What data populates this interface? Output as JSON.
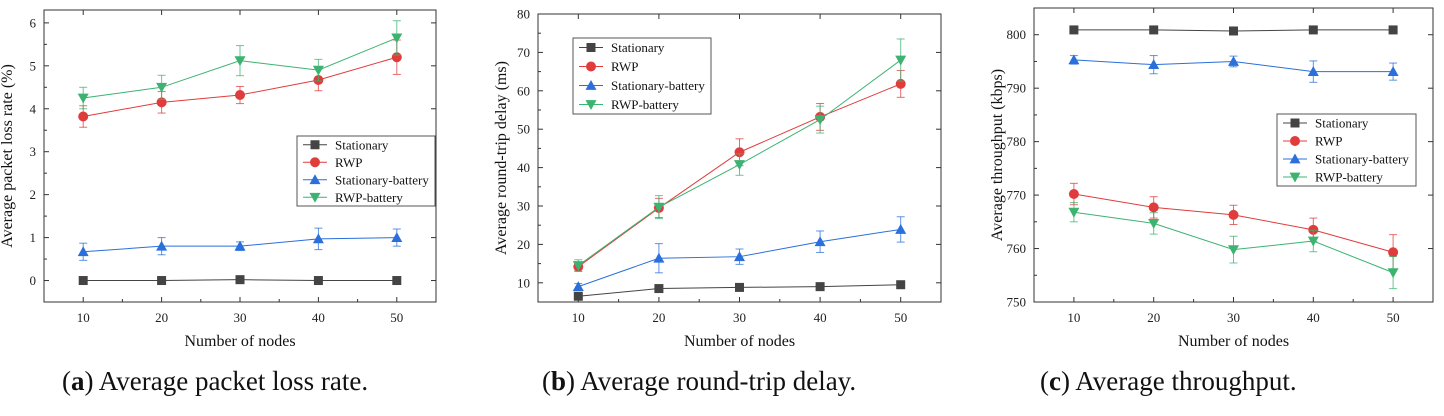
{
  "chart_data": [
    {
      "type": "line",
      "caption_letter": "a",
      "caption_text": "Average packet loss rate.",
      "xlabel": "Number of nodes",
      "ylabel": "Average packet loss rate (%)",
      "x": [
        10,
        20,
        30,
        40,
        50
      ],
      "xlim": [
        5,
        55
      ],
      "ylim": [
        -0.5,
        6.3
      ],
      "yticks": [
        0,
        1,
        2,
        3,
        4,
        5,
        6
      ],
      "legend_position": "center-right",
      "series": [
        {
          "name": "Stationary",
          "color": "#444444",
          "marker": "square",
          "values": [
            0.0,
            0.0,
            0.02,
            0.0,
            0.0
          ],
          "errors": [
            0.0,
            0.0,
            0.0,
            0.0,
            0.0
          ]
        },
        {
          "name": "RWP",
          "color": "#e03c3c",
          "marker": "circle",
          "values": [
            3.82,
            4.15,
            4.32,
            4.67,
            5.2
          ],
          "errors": [
            0.25,
            0.25,
            0.2,
            0.25,
            0.4
          ]
        },
        {
          "name": "Stationary-battery",
          "color": "#2a6fdb",
          "marker": "triangle-up",
          "values": [
            0.67,
            0.8,
            0.8,
            0.97,
            1.0
          ],
          "errors": [
            0.2,
            0.2,
            0.1,
            0.25,
            0.2
          ]
        },
        {
          "name": "RWP-battery",
          "color": "#3cb371",
          "marker": "triangle-down",
          "values": [
            4.25,
            4.5,
            5.12,
            4.9,
            5.65
          ],
          "errors": [
            0.25,
            0.28,
            0.35,
            0.25,
            0.4
          ]
        }
      ]
    },
    {
      "type": "line",
      "caption_letter": "b",
      "caption_text": "Average round-trip delay.",
      "xlabel": "Number of nodes",
      "ylabel": "Average round-trip delay (ms)",
      "x": [
        10,
        20,
        30,
        40,
        50
      ],
      "xlim": [
        5,
        55
      ],
      "ylim": [
        5,
        80
      ],
      "yticks": [
        10,
        20,
        30,
        40,
        50,
        60,
        70,
        80
      ],
      "legend_position": "top-left",
      "series": [
        {
          "name": "Stationary",
          "color": "#444444",
          "marker": "square",
          "values": [
            6.5,
            8.5,
            8.8,
            9.0,
            9.5
          ],
          "errors": [
            0.0,
            0.0,
            0.0,
            0.0,
            0.0
          ]
        },
        {
          "name": "RWP",
          "color": "#e03c3c",
          "marker": "circle",
          "values": [
            14.2,
            29.5,
            44.0,
            53.2,
            61.8
          ],
          "errors": [
            1.2,
            2.5,
            3.5,
            3.5,
            3.5
          ]
        },
        {
          "name": "Stationary-battery",
          "color": "#2a6fdb",
          "marker": "triangle-up",
          "values": [
            9.0,
            16.4,
            16.8,
            20.7,
            23.9
          ],
          "errors": [
            0.8,
            3.8,
            2.0,
            2.8,
            3.3
          ]
        },
        {
          "name": "RWP-battery",
          "color": "#3cb371",
          "marker": "triangle-down",
          "values": [
            14.5,
            29.7,
            40.8,
            52.5,
            68.0
          ],
          "errors": [
            1.5,
            3.0,
            2.8,
            3.5,
            5.5
          ]
        }
      ]
    },
    {
      "type": "line",
      "caption_letter": "c",
      "caption_text": "Average throughput.",
      "xlabel": "Number of nodes",
      "ylabel": "Average throughput (kbps)",
      "x": [
        10,
        20,
        30,
        40,
        50
      ],
      "xlim": [
        5,
        55
      ],
      "ylim": [
        750,
        805
      ],
      "yticks": [
        750,
        760,
        770,
        780,
        790,
        800
      ],
      "legend_position": "center-right",
      "series": [
        {
          "name": "Stationary",
          "color": "#444444",
          "marker": "square",
          "values": [
            800.9,
            800.9,
            800.7,
            800.9,
            800.9
          ],
          "errors": [
            0.0,
            0.0,
            0.0,
            0.0,
            0.0
          ]
        },
        {
          "name": "RWP",
          "color": "#e03c3c",
          "marker": "circle",
          "values": [
            770.2,
            767.7,
            766.3,
            763.5,
            759.3
          ],
          "errors": [
            2.0,
            2.0,
            1.8,
            2.2,
            3.3
          ]
        },
        {
          "name": "Stationary-battery",
          "color": "#2a6fdb",
          "marker": "triangle-up",
          "values": [
            795.3,
            794.4,
            795.0,
            793.1,
            793.1
          ],
          "errors": [
            0.8,
            1.7,
            1.0,
            2.0,
            1.6
          ]
        },
        {
          "name": "RWP-battery",
          "color": "#3cb371",
          "marker": "triangle-down",
          "values": [
            766.8,
            764.7,
            759.8,
            761.4,
            755.5
          ],
          "errors": [
            1.8,
            2.0,
            2.5,
            2.0,
            3.0
          ]
        }
      ]
    }
  ]
}
